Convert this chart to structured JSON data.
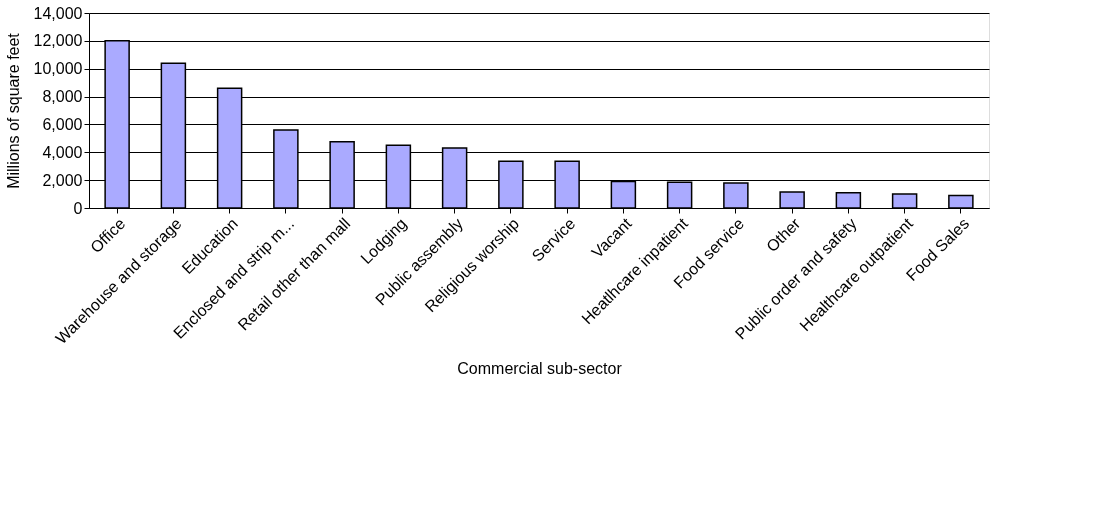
{
  "chart_data": {
    "type": "bar",
    "xlabel": "Commercial sub-sector",
    "ylabel": "Millions of square feet",
    "categories": [
      "Office",
      "Warehouse and storage",
      "Education",
      "Enclosed and strip m...",
      "Retail other than mall",
      "Lodging",
      "Public assembly",
      "Religious worship",
      "Service",
      "Vacant",
      "Heatlhcare inpatient",
      "Food service",
      "Other",
      "Public order and safety",
      "Healthcare outpatient",
      "Food Sales"
    ],
    "values": [
      12000,
      10400,
      8600,
      5600,
      4750,
      4500,
      4300,
      3350,
      3350,
      1900,
      1850,
      1800,
      1150,
      1100,
      1000,
      900
    ],
    "color": "#aaaaff",
    "ylim": [
      0,
      14000
    ],
    "yticks": [
      0,
      {
        "value": 2000,
        "label": "2,000"
      },
      {
        "value": 4000,
        "label": "4,000"
      },
      {
        "value": 6000,
        "label": "6,000"
      },
      {
        "value": 8000,
        "label": "8,000"
      },
      {
        "value": 10000,
        "label": "10,000"
      },
      {
        "value": 12000,
        "label": "12,000"
      },
      {
        "value": 14000,
        "label": "14,000"
      }
    ],
    "grid": "y"
  }
}
